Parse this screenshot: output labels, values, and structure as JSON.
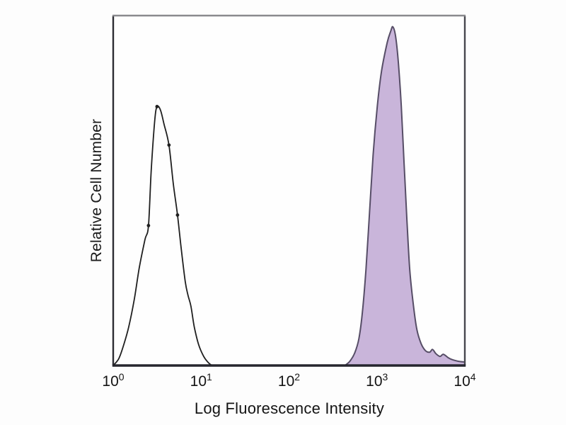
{
  "figure": {
    "background": "#fdfdfd",
    "colors": {
      "text": "#1a1a1a",
      "frame_top": "#8a8a8e",
      "frame_side": "#47474e",
      "frame_left": "#2c2c32",
      "bottom_axis": "#26262e",
      "control_stroke": "#1f1f1f",
      "stained_fill": "#c9b5da",
      "stained_stroke": "#564d66"
    }
  },
  "chart_data": {
    "type": "area",
    "subtype": "flow-cytometry-histogram-overlay",
    "title": "",
    "xlabel": "Log Fluorescence Intensity",
    "ylabel": "Relative Cell Number",
    "x_scale": "log10",
    "xlim": [
      1,
      10000
    ],
    "ylim": [
      0,
      1
    ],
    "grid": false,
    "legend": null,
    "x_ticks": [
      {
        "base": "10",
        "exp": "0",
        "value": 1
      },
      {
        "base": "10",
        "exp": "1",
        "value": 10
      },
      {
        "base": "10",
        "exp": "2",
        "value": 100
      },
      {
        "base": "10",
        "exp": "3",
        "value": 1000
      },
      {
        "base": "10",
        "exp": "4",
        "value": 10000
      }
    ],
    "y_ticks": [],
    "series": [
      {
        "id": "open-black-curve",
        "style": "open",
        "peak_x": 3.15,
        "peak_y": 0.74,
        "points": [
          [
            1.0,
            0.0
          ],
          [
            1.16,
            0.02
          ],
          [
            1.32,
            0.06
          ],
          [
            1.5,
            0.11
          ],
          [
            1.74,
            0.19
          ],
          [
            1.98,
            0.28
          ],
          [
            2.3,
            0.36
          ],
          [
            2.52,
            0.4
          ],
          [
            2.71,
            0.56
          ],
          [
            2.97,
            0.7
          ],
          [
            3.15,
            0.74
          ],
          [
            3.45,
            0.73
          ],
          [
            3.78,
            0.69
          ],
          [
            4.31,
            0.63
          ],
          [
            4.82,
            0.52
          ],
          [
            5.39,
            0.43
          ],
          [
            5.9,
            0.34
          ],
          [
            6.6,
            0.24
          ],
          [
            7.11,
            0.2
          ],
          [
            7.65,
            0.17
          ],
          [
            8.37,
            0.11
          ],
          [
            9.36,
            0.06
          ],
          [
            10.7,
            0.026
          ],
          [
            12.1,
            0.008
          ],
          [
            13.3,
            0.0
          ]
        ],
        "markers": [
          [
            2.52,
            0.4
          ],
          [
            3.15,
            0.74
          ],
          [
            4.31,
            0.63
          ],
          [
            5.39,
            0.43
          ]
        ]
      },
      {
        "id": "filled-purple-curve",
        "style": "filled",
        "peak_x": 1517,
        "peak_y": 0.968,
        "points": [
          [
            432,
            0.0
          ],
          [
            491,
            0.012
          ],
          [
            559,
            0.036
          ],
          [
            624,
            0.077
          ],
          [
            685,
            0.154
          ],
          [
            751,
            0.275
          ],
          [
            824,
            0.437
          ],
          [
            904,
            0.6
          ],
          [
            1010,
            0.741
          ],
          [
            1130,
            0.842
          ],
          [
            1310,
            0.923
          ],
          [
            1435,
            0.955
          ],
          [
            1517,
            0.968
          ],
          [
            1633,
            0.94
          ],
          [
            1758,
            0.862
          ],
          [
            1893,
            0.741
          ],
          [
            2037,
            0.579
          ],
          [
            2193,
            0.417
          ],
          [
            2361,
            0.275
          ],
          [
            2594,
            0.174
          ],
          [
            2845,
            0.103
          ],
          [
            3177,
            0.063
          ],
          [
            3550,
            0.043
          ],
          [
            3980,
            0.038
          ],
          [
            4290,
            0.046
          ],
          [
            4680,
            0.034
          ],
          [
            5220,
            0.026
          ],
          [
            5710,
            0.032
          ],
          [
            6490,
            0.022
          ],
          [
            7330,
            0.016
          ],
          [
            8500,
            0.012
          ],
          [
            10000,
            0.01
          ]
        ],
        "markers": []
      }
    ]
  }
}
